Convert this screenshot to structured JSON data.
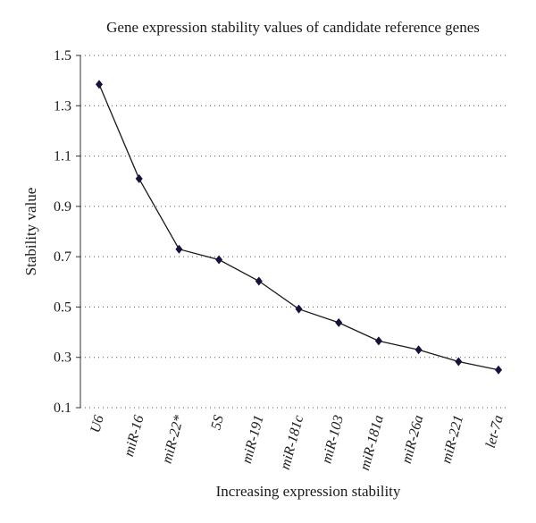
{
  "chart_data": {
    "type": "line",
    "title": "Gene expression stability values of candidate reference genes",
    "xlabel": "Increasing expression stability",
    "ylabel": "Stability value",
    "ylim": [
      0.1,
      1.5
    ],
    "yticks": [
      "1.5",
      "1.3",
      "1.1",
      "0.9",
      "0.7",
      "0.5",
      "0.3",
      "0.1"
    ],
    "grid": "horizontal dotted",
    "marker": "diamond",
    "colors": {
      "marker": "#13133d",
      "line": "#1a1a1a"
    },
    "categories": [
      "U6",
      "miR-16",
      "miR-22*",
      "5S",
      "miR-191",
      "miR-181c",
      "miR-103",
      "miR-181a",
      "miR-26a",
      "miR-221",
      "let-7a"
    ],
    "values": [
      1.385,
      1.01,
      0.73,
      0.688,
      0.603,
      0.492,
      0.438,
      0.365,
      0.33,
      0.283,
      0.25
    ]
  }
}
